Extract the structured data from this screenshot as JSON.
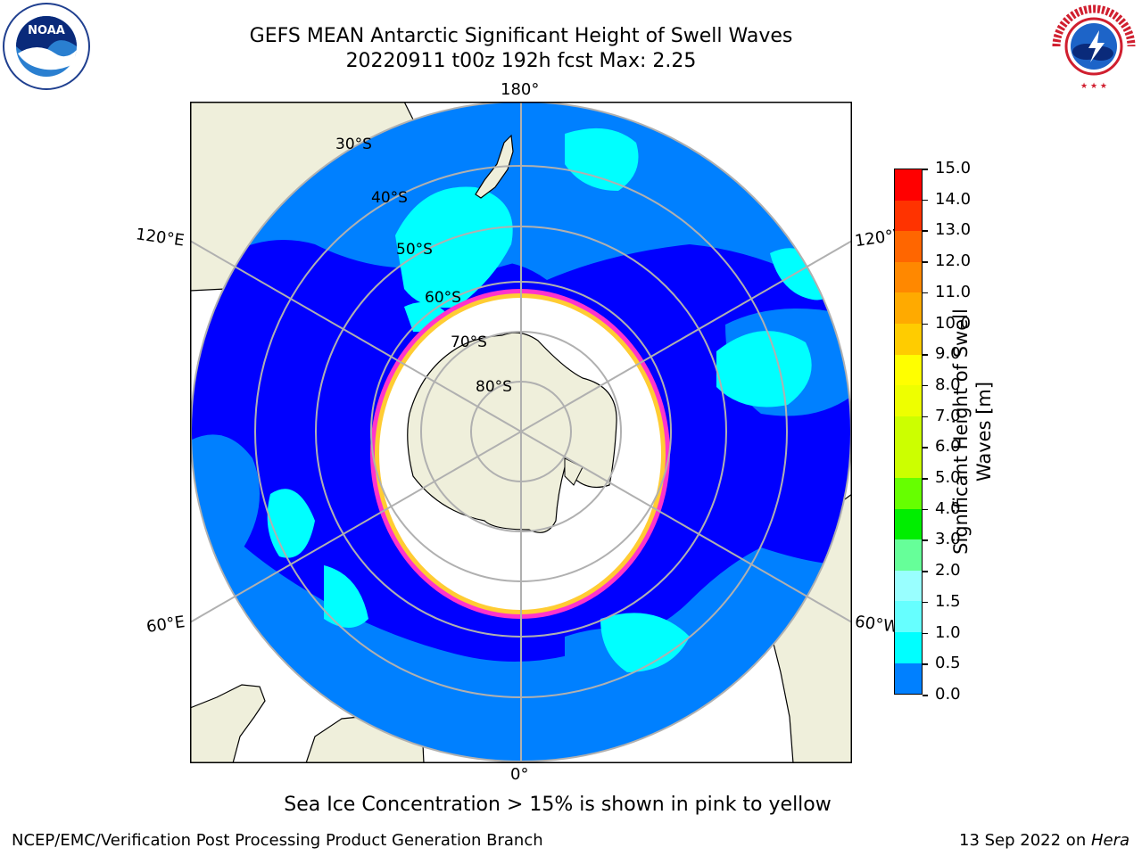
{
  "title_line1": "GEFS MEAN Antarctic Significant Height of Swell Waves",
  "title_line2": "20220911 t00z 192h fcst   Max: 2.25",
  "logos": {
    "left_icon": "noaa-logo",
    "left_text": "NOAA",
    "right_icon": "nws-logo",
    "right_text": "NATIONAL WEATHER SERVICE"
  },
  "map": {
    "projection": "south-polar-stereographic",
    "lon_labels": {
      "top": "180°",
      "bottom": "0°",
      "upper_left": "120°E",
      "upper_right": "120°W",
      "lower_left": "60°E",
      "lower_right": "60°W"
    },
    "lat_labels": [
      "30°S",
      "40°S",
      "50°S",
      "60°S",
      "70°S",
      "80°S"
    ],
    "colors": {
      "ocean_low": "#0000ff",
      "ocean_mid": "#0080ff",
      "ocean_high": "#00ffff",
      "land": "#efefdb",
      "ice": "#ffffff",
      "ice_edge_pink": "#ff33cc",
      "ice_edge_yellow": "#ffcc33",
      "gridline": "#b0b0b0"
    }
  },
  "colorbar": {
    "label_line1": "Significant Height of Swell",
    "label_line2": "Waves [m]",
    "ticks": [
      "15.0",
      "14.0",
      "13.0",
      "12.0",
      "11.0",
      "10.0",
      "9.0",
      "8.0",
      "7.0",
      "6.0",
      "5.0",
      "4.0",
      "3.0",
      "2.0",
      "1.5",
      "1.0",
      "0.5",
      "0.0"
    ],
    "colors_top_to_bottom": [
      "#ff0000",
      "#ff3300",
      "#ff6600",
      "#ff8800",
      "#ffaa00",
      "#ffcc00",
      "#ffff00",
      "#eeff00",
      "#ccff00",
      "#ccff00",
      "#66ff00",
      "#00ee00",
      "#66ff99",
      "#99ffff",
      "#66ffff",
      "#00ffff",
      "#0080ff",
      "#0000ff"
    ]
  },
  "caption": "Sea Ice Concentration > 15% is shown in pink to yellow",
  "footer_left": "NCEP/EMC/Verification Post Processing Product Generation Branch",
  "footer_right_prefix": "13 Sep 2022 on ",
  "footer_right_host": "Hera"
}
